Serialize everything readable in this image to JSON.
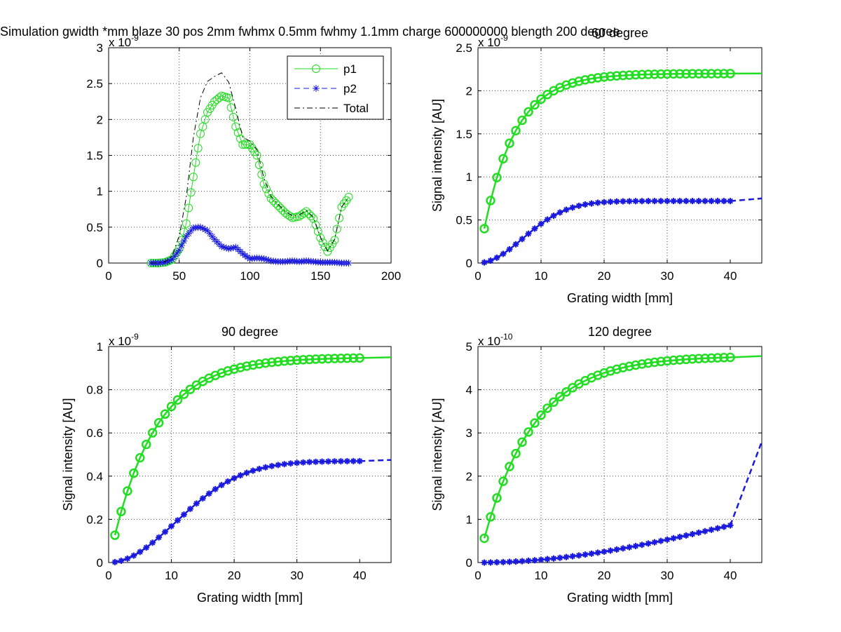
{
  "figure": {
    "suptitle": "Simulation gwidth *mm blaze 30 pos 2mm fwhmx 0.5mm fwhmy 1.1mm charge 600000000 blength 200 degree"
  },
  "colors": {
    "p1": "#22dd22",
    "p2": "#1a1adf",
    "total": "#000000"
  },
  "chart_data": [
    {
      "type": "line",
      "title": "",
      "xlabel": "",
      "ylabel": "",
      "xlim": [
        0,
        200
      ],
      "ylim": [
        0,
        3
      ],
      "y_exponent_label": "x 10^-9",
      "xticks": [
        0,
        50,
        100,
        150,
        200
      ],
      "yticks": [
        0,
        0.5,
        1,
        1.5,
        2,
        2.5,
        3
      ],
      "grid": true,
      "legend": {
        "placement": "top-right",
        "entries": [
          "p1",
          "p2",
          "Total"
        ]
      },
      "x": [
        30,
        35,
        40,
        45,
        50,
        55,
        60,
        65,
        70,
        75,
        80,
        85,
        90,
        95,
        100,
        105,
        110,
        115,
        120,
        125,
        130,
        135,
        140,
        145,
        150,
        155,
        160,
        165,
        170
      ],
      "series": [
        {
          "name": "p1",
          "marker": "circle",
          "style": "solid",
          "values": [
            0,
            0,
            0.01,
            0.05,
            0.2,
            0.55,
            1.2,
            1.8,
            2.1,
            2.25,
            2.33,
            2.3,
            1.9,
            1.65,
            1.65,
            1.5,
            1.1,
            0.9,
            0.8,
            0.7,
            0.63,
            0.65,
            0.72,
            0.62,
            0.35,
            0.16,
            0.32,
            0.78,
            0.92
          ]
        },
        {
          "name": "p2",
          "marker": "star",
          "style": "dashed",
          "values": [
            0,
            0,
            0.01,
            0.05,
            0.18,
            0.37,
            0.49,
            0.5,
            0.45,
            0.33,
            0.23,
            0.2,
            0.22,
            0.13,
            0.06,
            0.07,
            0.06,
            0.03,
            0.02,
            0.02,
            0.03,
            0.02,
            0.03,
            0.02,
            0.01,
            0.01,
            0.01,
            0.0,
            0.0
          ]
        },
        {
          "name": "Total",
          "marker": "none",
          "style": "dashdot",
          "values": [
            0,
            0,
            0.02,
            0.1,
            0.38,
            0.92,
            1.75,
            2.3,
            2.53,
            2.6,
            2.65,
            2.52,
            2.15,
            1.75,
            1.7,
            1.58,
            1.18,
            0.93,
            0.82,
            0.72,
            0.66,
            0.67,
            0.73,
            0.64,
            0.36,
            0.17,
            0.33,
            0.78,
            0.92
          ]
        }
      ]
    },
    {
      "type": "line",
      "title": "60 degree",
      "xlabel": "Grating width [mm]",
      "ylabel": "Signal intensity [AU]",
      "xlim": [
        0,
        45
      ],
      "ylim": [
        0,
        2.5
      ],
      "y_exponent_label": "x 10^-9",
      "xticks": [
        0,
        10,
        20,
        30,
        40
      ],
      "yticks": [
        0,
        0.5,
        1,
        1.5,
        2,
        2.5
      ],
      "grid": true,
      "series": [
        {
          "name": "p1",
          "p": 2.2,
          "l": 5,
          "sig": 0,
          "fit_end": 2.2
        },
        {
          "name": "p2",
          "p": 0.72,
          "l": 10,
          "sig": 2,
          "fit_end": 0.75
        }
      ]
    },
    {
      "type": "line",
      "title": "90 degree",
      "xlabel": "Grating width [mm]",
      "ylabel": "Signal intensity [AU]",
      "xlim": [
        0,
        45
      ],
      "ylim": [
        0,
        1
      ],
      "y_exponent_label": "x 10^-9",
      "xticks": [
        0,
        10,
        20,
        30,
        40
      ],
      "yticks": [
        0,
        0.2,
        0.4,
        0.6,
        0.8,
        1
      ],
      "grid": true,
      "series": [
        {
          "name": "p1",
          "p": 0.95,
          "l": 7,
          "sig": 0,
          "fit_end": 0.95
        },
        {
          "name": "p2",
          "p": 0.47,
          "l": 15,
          "sig": 2,
          "fit_end": 0.475
        }
      ]
    },
    {
      "type": "line",
      "title": "120 degree",
      "xlabel": "Grating width [mm]",
      "ylabel": "Signal intensity [AU]",
      "xlim": [
        0,
        45
      ],
      "ylim": [
        0,
        5
      ],
      "y_exponent_label": "x 10^-10",
      "xticks": [
        0,
        10,
        20,
        30,
        40
      ],
      "yticks": [
        0,
        1,
        2,
        3,
        4,
        5
      ],
      "grid": true,
      "series": [
        {
          "name": "p1",
          "p": 4.78,
          "l": 8,
          "sig": 0,
          "fit_end": 4.78
        },
        {
          "name": "p2",
          "p": 2.4,
          "l": 60,
          "sig": 2,
          "fit_end": 2.8
        }
      ]
    }
  ]
}
